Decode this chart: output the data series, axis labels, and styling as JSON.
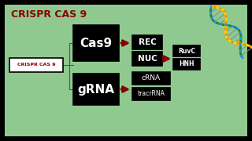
{
  "bg_color": "#000000",
  "inner_bg": "#90c990",
  "title": "CRISPR CAS 9",
  "title_color": "#8b0000",
  "title_fontsize": 9,
  "arrow_color": "#8b0000",
  "crispr_label": "CRISPR CAS 9",
  "dna_colors_strand1": [
    "#FFD700",
    "#FF8C00",
    "#FFD700",
    "#FF8C00",
    "#FFD700",
    "#FF8C00"
  ],
  "dna_colors_strand2": [
    "#4169E1",
    "#32CD32",
    "#4169E1",
    "#32CD32",
    "#4169E1",
    "#32CD32"
  ],
  "ruvC_text": "RuvC",
  "hnh_text": "HNH"
}
